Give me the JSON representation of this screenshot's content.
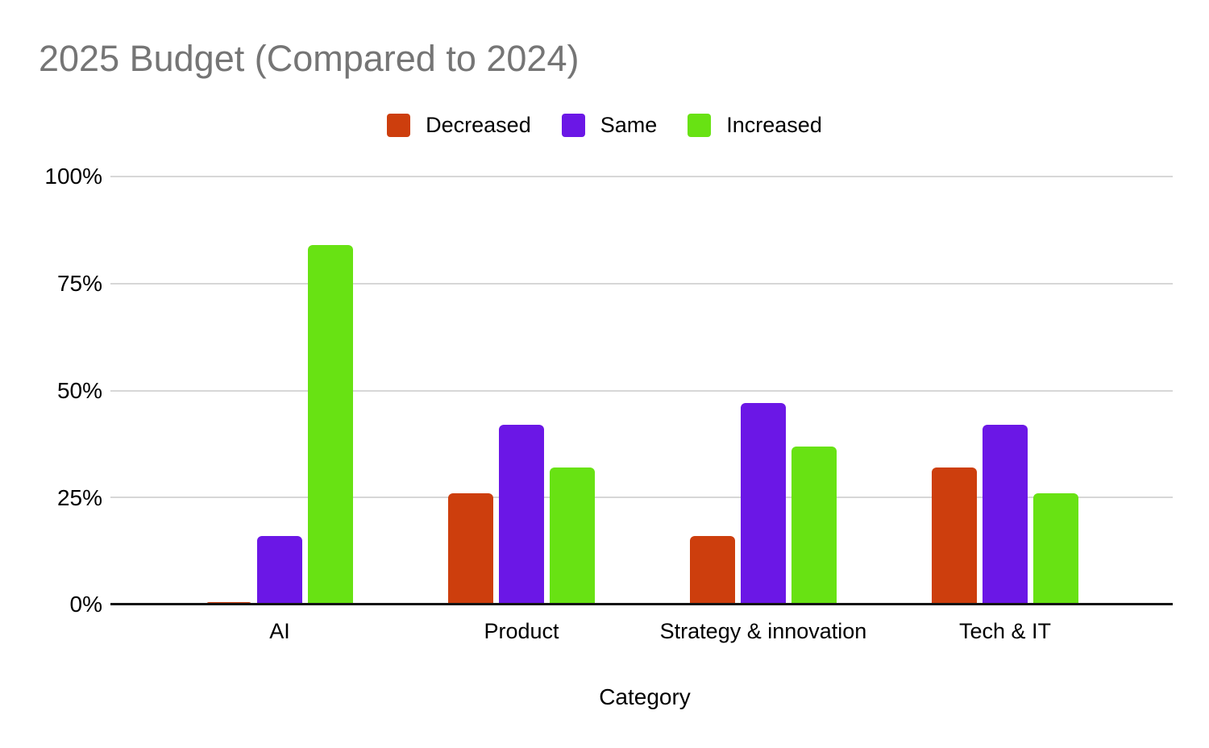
{
  "chart_data": {
    "type": "bar",
    "title": "2025 Budget (Compared to 2024)",
    "categories": [
      "AI",
      "Product",
      "Strategy & innovation",
      "Tech & IT"
    ],
    "series": [
      {
        "name": "Decreased",
        "color": "#cd3e0d",
        "values": [
          0.5,
          26,
          16,
          32
        ]
      },
      {
        "name": "Same",
        "color": "#6b17e6",
        "values": [
          16,
          42,
          47,
          42
        ]
      },
      {
        "name": "Increased",
        "color": "#68e213",
        "values": [
          84,
          32,
          37,
          26
        ]
      }
    ],
    "xlabel": "Category",
    "ylabel": "",
    "ylim": [
      0,
      100
    ],
    "yticks": [
      "0%",
      "25%",
      "50%",
      "75%",
      "100%"
    ],
    "grid": true,
    "legend_position": "top",
    "title_color": "#757575",
    "gridline_color": "#d7d7d7",
    "axis_color": "#111111",
    "background_color": "#ffffff"
  }
}
